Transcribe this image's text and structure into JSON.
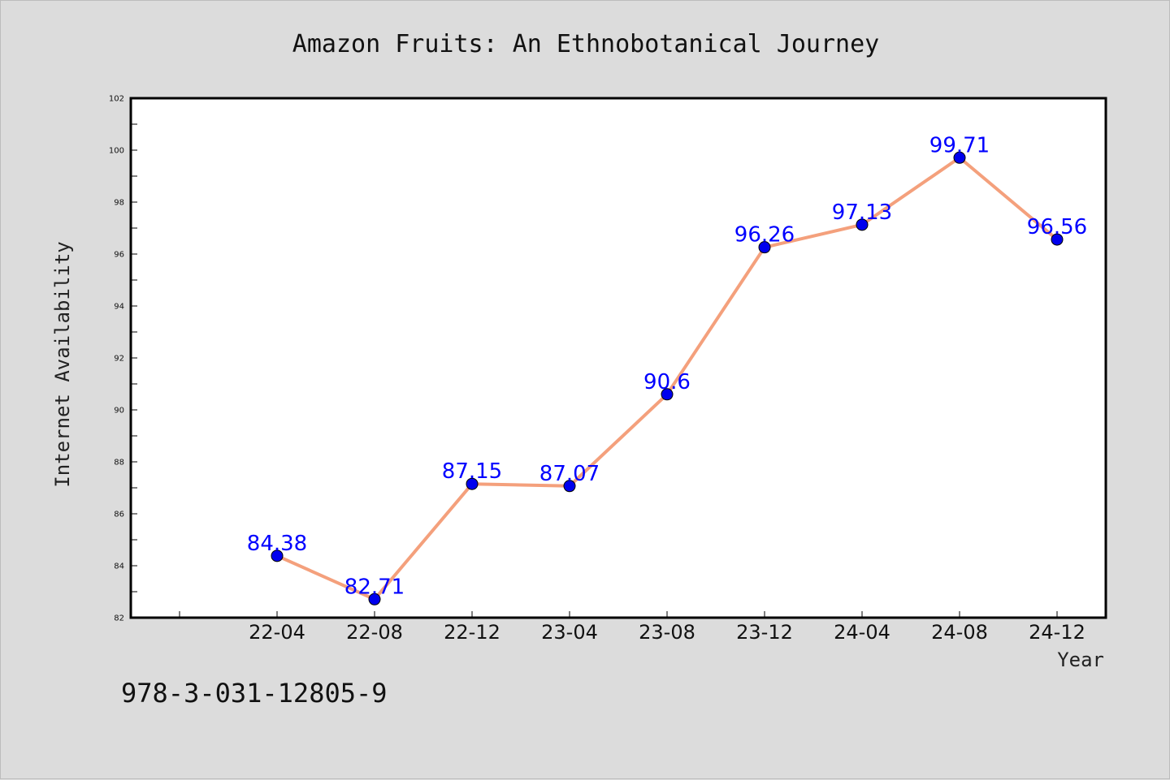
{
  "chart_data": {
    "type": "line",
    "title": "Amazon Fruits: An Ethnobotanical Journey",
    "xlabel": "Year",
    "ylabel": "Internet Availability",
    "categories": [
      "22-04",
      "22-08",
      "22-12",
      "23-04",
      "23-08",
      "23-12",
      "24-04",
      "24-08",
      "24-12"
    ],
    "values": [
      84.38,
      82.71,
      87.15,
      87.07,
      90.6,
      96.26,
      97.13,
      99.71,
      96.56
    ],
    "data_labels": [
      "84.38",
      "82.71",
      "87.15",
      "87.07",
      "90.6",
      "96.26",
      "97.13",
      "99.71",
      "96.56"
    ],
    "ylim": [
      82,
      102
    ],
    "yticks": [
      "82",
      "84",
      "86",
      "88",
      "90",
      "92",
      "94",
      "96",
      "98",
      "100",
      "102"
    ],
    "grid": false,
    "legend": "none",
    "line_color": "#f4a07c",
    "marker_color": "#0000ee",
    "label_color": "#0000ff"
  },
  "footnote": "978-3-031-12805-9"
}
